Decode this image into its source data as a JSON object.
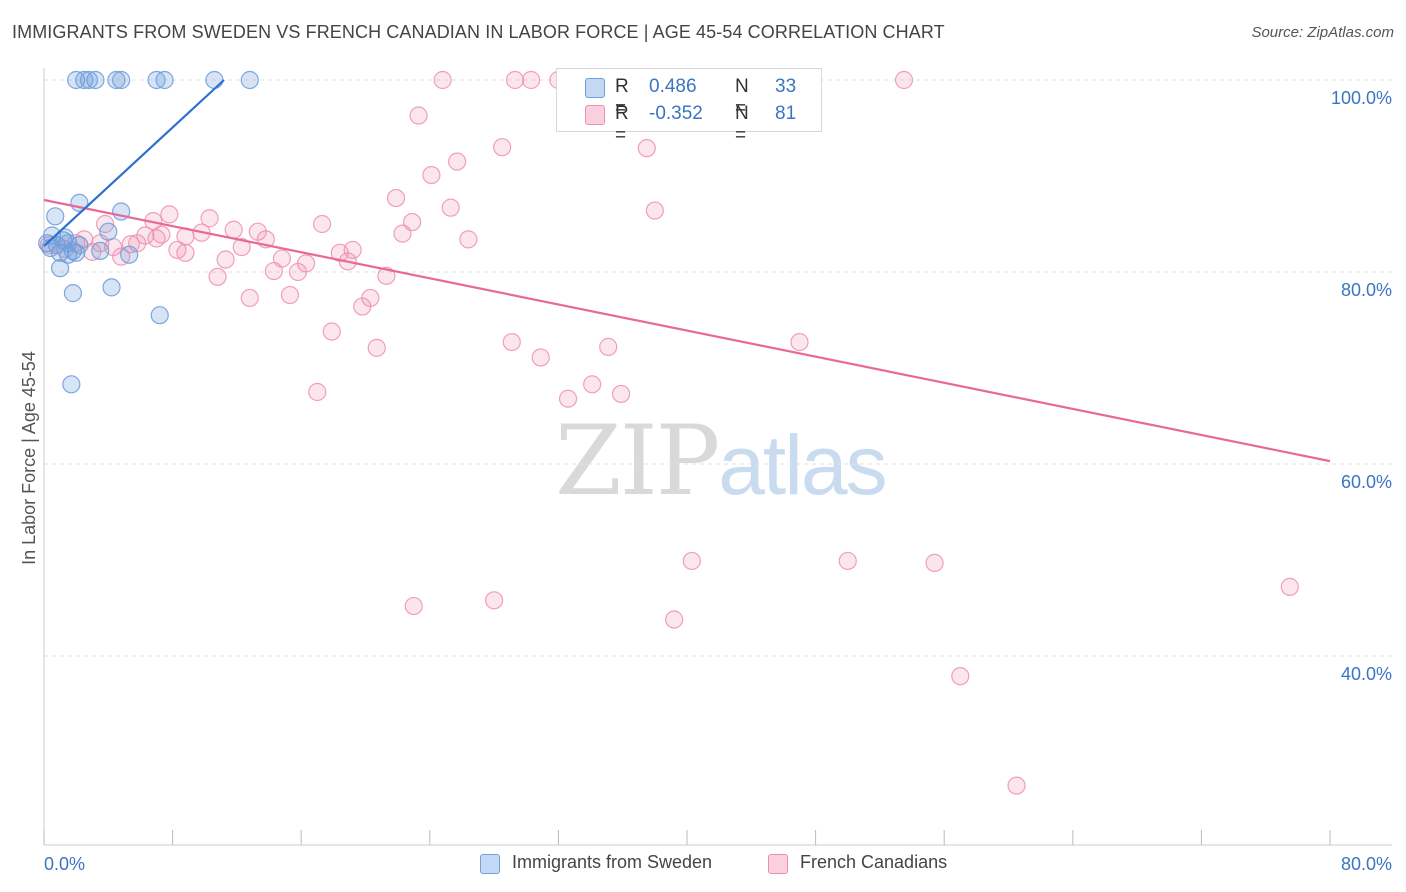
{
  "title": "IMMIGRANTS FROM SWEDEN VS FRENCH CANADIAN IN LABOR FORCE | AGE 45-54 CORRELATION CHART",
  "source": "Source: ZipAtlas.com",
  "watermark": {
    "zip": "ZIP",
    "atlas": "atlas"
  },
  "legend": {
    "rows": [
      {
        "r_label": "R =",
        "r_value": "0.486",
        "n_label": "N =",
        "n_value": "33"
      },
      {
        "r_label": "R =",
        "r_value": "-0.352",
        "n_label": "N =",
        "n_value": "81"
      }
    ]
  },
  "bottom_legend": [
    "Immigrants from Sweden",
    "French Canadians"
  ],
  "chart_data": {
    "type": "scatter",
    "ylabel": "In Labor Force | Age 45-54",
    "x_tick_labels": [
      "0.0%",
      "80.0%"
    ],
    "y_tick_labels": [
      "100.0%",
      "80.0%",
      "60.0%",
      "40.0%"
    ],
    "xlim": [
      0,
      80
    ],
    "ylim": [
      20,
      102
    ],
    "grid": true,
    "colors": {
      "sweden": "#6f9fdc",
      "french": "#ef8fae",
      "sweden_line": "#2f6fcf",
      "french_line": "#e8689a"
    },
    "series": [
      {
        "name": "Immigrants from Sweden",
        "r": 0.486,
        "n": 33,
        "trend": [
          [
            0.0,
            82.7
          ],
          [
            11.2,
            100.0
          ]
        ],
        "points": [
          [
            0.2,
            83.0
          ],
          [
            0.4,
            82.5
          ],
          [
            0.5,
            83.8
          ],
          [
            0.8,
            82.8
          ],
          [
            1.0,
            82.0
          ],
          [
            0.7,
            85.8
          ],
          [
            1.3,
            83.6
          ],
          [
            1.5,
            81.8
          ],
          [
            1.2,
            83.3
          ],
          [
            1.8,
            82.2
          ],
          [
            2.2,
            82.8
          ],
          [
            2.0,
            82.0
          ],
          [
            3.5,
            82.2
          ],
          [
            2.2,
            87.2
          ],
          [
            4.0,
            84.2
          ],
          [
            4.8,
            86.3
          ],
          [
            5.3,
            81.8
          ],
          [
            4.2,
            78.4
          ],
          [
            1.0,
            80.4
          ],
          [
            1.8,
            77.8
          ],
          [
            7.2,
            75.5
          ],
          [
            1.7,
            68.3
          ],
          [
            2.0,
            100.0
          ],
          [
            2.5,
            100.0
          ],
          [
            2.8,
            100.0
          ],
          [
            3.2,
            100.0
          ],
          [
            4.5,
            100.0
          ],
          [
            4.8,
            100.0
          ],
          [
            7.0,
            100.0
          ],
          [
            7.5,
            100.0
          ],
          [
            10.6,
            100.0
          ],
          [
            12.8,
            100.0
          ],
          [
            1.5,
            83.0
          ]
        ]
      },
      {
        "name": "French Canadians",
        "r": -0.352,
        "n": 81,
        "trend": [
          [
            0.0,
            87.5
          ],
          [
            80.0,
            60.3
          ]
        ],
        "points": [
          [
            0.3,
            82.8
          ],
          [
            1.3,
            82.4
          ],
          [
            2.0,
            83.0
          ],
          [
            2.5,
            83.4
          ],
          [
            3.0,
            82.1
          ],
          [
            3.8,
            85.0
          ],
          [
            4.3,
            82.6
          ],
          [
            4.8,
            81.6
          ],
          [
            5.4,
            82.9
          ],
          [
            5.8,
            83.0
          ],
          [
            6.3,
            83.8
          ],
          [
            6.8,
            85.3
          ],
          [
            7.3,
            83.9
          ],
          [
            7.8,
            86.0
          ],
          [
            8.3,
            82.3
          ],
          [
            8.8,
            83.7
          ],
          [
            9.8,
            84.1
          ],
          [
            10.3,
            85.6
          ],
          [
            10.8,
            79.5
          ],
          [
            11.3,
            81.3
          ],
          [
            11.8,
            84.4
          ],
          [
            12.3,
            82.6
          ],
          [
            12.8,
            77.3
          ],
          [
            13.3,
            84.2
          ],
          [
            13.8,
            83.4
          ],
          [
            14.3,
            80.1
          ],
          [
            14.8,
            81.4
          ],
          [
            15.3,
            77.6
          ],
          [
            15.8,
            80.0
          ],
          [
            16.3,
            80.9
          ],
          [
            17.0,
            67.5
          ],
          [
            17.3,
            85.0
          ],
          [
            17.9,
            73.8
          ],
          [
            18.4,
            82.0
          ],
          [
            18.9,
            81.1
          ],
          [
            19.2,
            82.3
          ],
          [
            19.8,
            76.4
          ],
          [
            20.3,
            77.3
          ],
          [
            20.7,
            72.1
          ],
          [
            21.3,
            79.6
          ],
          [
            21.9,
            87.7
          ],
          [
            22.3,
            84.0
          ],
          [
            22.9,
            85.2
          ],
          [
            23.3,
            96.3
          ],
          [
            24.1,
            90.1
          ],
          [
            25.3,
            86.7
          ],
          [
            25.7,
            91.5
          ],
          [
            26.4,
            83.4
          ],
          [
            28.5,
            93.0
          ],
          [
            29.1,
            72.7
          ],
          [
            30.9,
            71.1
          ],
          [
            32.6,
            66.8
          ],
          [
            34.1,
            68.3
          ],
          [
            35.1,
            72.2
          ],
          [
            35.9,
            67.3
          ],
          [
            37.5,
            92.9
          ],
          [
            38.0,
            86.4
          ],
          [
            47.0,
            72.7
          ],
          [
            24.8,
            100.0
          ],
          [
            29.3,
            100.0
          ],
          [
            30.3,
            100.0
          ],
          [
            32.0,
            100.0
          ],
          [
            33.5,
            100.0
          ],
          [
            36.3,
            100.0
          ],
          [
            40.7,
            100.0
          ],
          [
            46.9,
            100.0
          ],
          [
            53.5,
            100.0
          ],
          [
            34.3,
            100.0
          ],
          [
            38.3,
            100.0
          ],
          [
            40.3,
            49.9
          ],
          [
            50.0,
            49.9
          ],
          [
            55.4,
            49.7
          ],
          [
            77.5,
            47.2
          ],
          [
            23.0,
            45.2
          ],
          [
            28.0,
            45.8
          ],
          [
            39.2,
            43.8
          ],
          [
            57.0,
            37.9
          ],
          [
            60.5,
            26.5
          ],
          [
            8.8,
            82.0
          ],
          [
            3.5,
            83.0
          ],
          [
            7.0,
            83.5
          ]
        ]
      }
    ]
  }
}
